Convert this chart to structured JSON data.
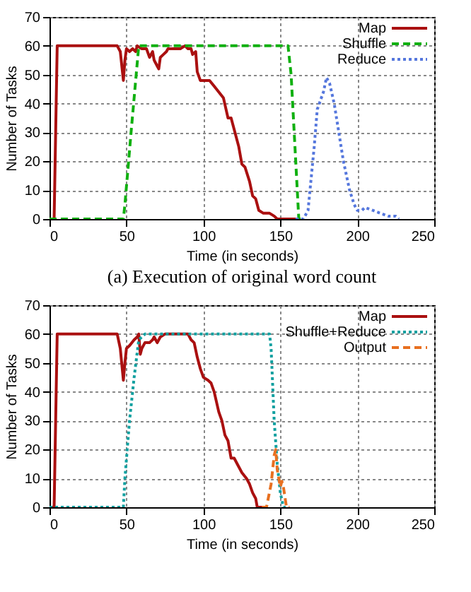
{
  "chart_data": [
    {
      "type": "line",
      "xlabel": "Time (in seconds)",
      "ylabel": "Number of Tasks",
      "xlim": [
        0,
        250
      ],
      "ylim": [
        0,
        70
      ],
      "xticks": [
        0,
        50,
        100,
        150,
        200,
        250
      ],
      "yticks": [
        0,
        10,
        20,
        30,
        40,
        50,
        60,
        70
      ],
      "grid": true,
      "legend": "top right",
      "marker": "none",
      "annotations": [
        "(a) Execution of original word count"
      ],
      "series": [
        {
          "name": "Map",
          "color": "#aa1010",
          "line_style": "solid",
          "x": [
            0,
            3,
            5,
            44,
            46,
            48,
            49,
            50,
            52,
            54,
            56,
            57,
            60,
            63,
            65,
            67,
            68,
            70,
            71,
            72,
            74,
            76,
            77,
            80,
            85,
            88,
            90,
            92,
            93,
            95,
            96,
            98,
            104,
            107,
            110,
            113,
            116,
            118,
            120,
            123,
            125,
            127,
            130,
            132,
            134,
            136,
            139,
            143,
            146,
            148,
            160
          ],
          "values": [
            0,
            0,
            60,
            60,
            58,
            48,
            55,
            59,
            58,
            59,
            58,
            60,
            59,
            59,
            56,
            58,
            55,
            53,
            52,
            56,
            57,
            58,
            59,
            59,
            59,
            60,
            59,
            59,
            57,
            58,
            51,
            48,
            48,
            46,
            44,
            42,
            35,
            35,
            31,
            25,
            19,
            18,
            13,
            8,
            7,
            3,
            2,
            2,
            1,
            0,
            0
          ]
        },
        {
          "name": "Shuffle",
          "color": "#10b010",
          "line_style": "dashed",
          "x": [
            0,
            48,
            49,
            53,
            58,
            155,
            157,
            160,
            162,
            165
          ],
          "values": [
            0,
            0,
            5,
            30,
            60,
            60,
            50,
            20,
            0,
            0
          ]
        },
        {
          "name": "Reduce",
          "color": "#5577dd",
          "line_style": "dotted",
          "x": [
            160,
            165,
            168,
            172,
            174,
            178,
            180,
            182,
            185,
            188,
            191,
            195,
            198,
            200,
            203,
            205,
            210,
            215,
            220,
            225,
            227
          ],
          "values": [
            0,
            0,
            3,
            25,
            38,
            44,
            49,
            47,
            40,
            30,
            20,
            10,
            5,
            3,
            3,
            4,
            3,
            2,
            1,
            1,
            0
          ]
        }
      ]
    },
    {
      "type": "line",
      "xlabel": "Time (in seconds)",
      "ylabel": "Number of Tasks",
      "xlim": [
        0,
        250
      ],
      "ylim": [
        0,
        70
      ],
      "xticks": [
        0,
        50,
        100,
        150,
        200,
        250
      ],
      "yticks": [
        0,
        10,
        20,
        30,
        40,
        50,
        60,
        70
      ],
      "grid": true,
      "legend": "top right",
      "marker": "none",
      "series": [
        {
          "name": "Map",
          "color": "#aa1010",
          "line_style": "solid",
          "x": [
            0,
            3,
            5,
            44,
            46,
            48,
            49,
            50,
            52,
            55,
            57,
            58,
            59,
            60,
            62,
            65,
            67,
            68,
            70,
            72,
            75,
            90,
            92,
            94,
            96,
            98,
            100,
            103,
            105,
            107,
            110,
            112,
            114,
            116,
            118,
            120,
            122,
            125,
            128,
            130,
            132,
            134,
            135,
            140
          ],
          "values": [
            0,
            0,
            60,
            60,
            55,
            44,
            50,
            55,
            56,
            58,
            59,
            60,
            53,
            55,
            57,
            57,
            58,
            59,
            57,
            59,
            60,
            60,
            58,
            57,
            52,
            48,
            45,
            44,
            43,
            40,
            33,
            30,
            25,
            23,
            17,
            17,
            15,
            12,
            10,
            8,
            5,
            3,
            0,
            0
          ]
        },
        {
          "name": "Shuffle+Reduce",
          "color": "#10a0a0",
          "line_style": "dotted",
          "x": [
            0,
            48,
            49,
            52,
            55,
            58,
            62,
            143,
            144,
            146,
            148,
            150,
            152,
            154
          ],
          "values": [
            0,
            0,
            10,
            30,
            45,
            58,
            60,
            60,
            55,
            30,
            15,
            5,
            0,
            0
          ]
        },
        {
          "name": "Output",
          "color": "#e87020",
          "line_style": "dashed",
          "x": [
            138,
            141,
            144,
            146,
            147,
            148,
            150,
            151,
            152,
            154,
            156
          ],
          "values": [
            0,
            0,
            8,
            18,
            20,
            13,
            7,
            9,
            7,
            0,
            0
          ]
        }
      ]
    }
  ]
}
